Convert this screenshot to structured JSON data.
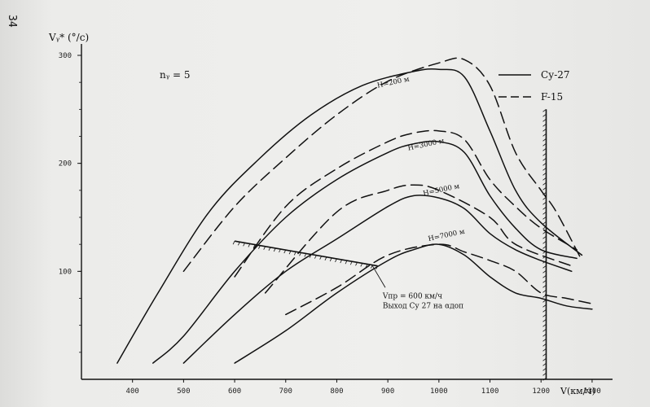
{
  "page_number": "34",
  "chart_data": {
    "type": "line",
    "ylabel": "Vᵧ* (°/c)",
    "xlabel": "V(км/ч)",
    "annotation_ny": "nᵧ = 5",
    "xlim": [
      300,
      1340
    ],
    "ylim": [
      0,
      300
    ],
    "x_ticks": [
      400,
      500,
      600,
      700,
      800,
      900,
      1000,
      1100,
      1200,
      1300
    ],
    "x_tick_labels": [
      "400",
      "500",
      "600",
      "700",
      "800",
      "900",
      "1000",
      "1100",
      "1200",
      "1300"
    ],
    "y_ticks": [
      100,
      200,
      300
    ],
    "y_tick_labels": [
      "100",
      "200",
      "300"
    ],
    "legend": [
      {
        "name": "Су-27",
        "style": "solid"
      },
      {
        "name": "F-15",
        "style": "dashed"
      }
    ],
    "legend_position": "top-right",
    "series": [
      {
        "name": "Су-27",
        "altitude": "H=200 м",
        "style": "solid",
        "points": [
          [
            370,
            15
          ],
          [
            450,
            80
          ],
          [
            550,
            155
          ],
          [
            650,
            205
          ],
          [
            750,
            245
          ],
          [
            850,
            272
          ],
          [
            950,
            285
          ],
          [
            1000,
            287
          ],
          [
            1050,
            280
          ],
          [
            1100,
            230
          ],
          [
            1150,
            175
          ],
          [
            1200,
            145
          ],
          [
            1280,
            115
          ]
        ]
      },
      {
        "name": "F-15",
        "altitude": "H=200 м",
        "style": "dashed",
        "points": [
          [
            500,
            100
          ],
          [
            600,
            160
          ],
          [
            700,
            205
          ],
          [
            800,
            245
          ],
          [
            900,
            276
          ],
          [
            1000,
            293
          ],
          [
            1050,
            296
          ],
          [
            1100,
            272
          ],
          [
            1150,
            210
          ],
          [
            1200,
            175
          ],
          [
            1230,
            155
          ],
          [
            1280,
            110
          ]
        ]
      },
      {
        "name": "Су-27",
        "altitude": "H=3000 м",
        "style": "solid",
        "points": [
          [
            440,
            15
          ],
          [
            500,
            40
          ],
          [
            600,
            100
          ],
          [
            700,
            150
          ],
          [
            800,
            185
          ],
          [
            900,
            210
          ],
          [
            950,
            218
          ],
          [
            1000,
            220
          ],
          [
            1050,
            210
          ],
          [
            1100,
            170
          ],
          [
            1150,
            140
          ],
          [
            1200,
            120
          ],
          [
            1270,
            112
          ]
        ]
      },
      {
        "name": "F-15",
        "altitude": "H=3000 м",
        "style": "dashed",
        "points": [
          [
            600,
            95
          ],
          [
            700,
            160
          ],
          [
            800,
            195
          ],
          [
            900,
            220
          ],
          [
            950,
            228
          ],
          [
            1000,
            230
          ],
          [
            1050,
            222
          ],
          [
            1100,
            185
          ],
          [
            1150,
            160
          ],
          [
            1200,
            140
          ],
          [
            1270,
            120
          ]
        ]
      },
      {
        "name": "Су-27",
        "altitude": "H=5000 м",
        "style": "solid",
        "points": [
          [
            500,
            15
          ],
          [
            600,
            60
          ],
          [
            700,
            100
          ],
          [
            800,
            130
          ],
          [
            900,
            160
          ],
          [
            950,
            170
          ],
          [
            1000,
            168
          ],
          [
            1050,
            158
          ],
          [
            1100,
            135
          ],
          [
            1150,
            120
          ],
          [
            1200,
            110
          ],
          [
            1260,
            100
          ]
        ]
      },
      {
        "name": "F-15",
        "altitude": "H=5000 м",
        "style": "dashed",
        "points": [
          [
            660,
            80
          ],
          [
            800,
            155
          ],
          [
            900,
            175
          ],
          [
            950,
            180
          ],
          [
            1000,
            175
          ],
          [
            1100,
            150
          ],
          [
            1150,
            125
          ],
          [
            1260,
            105
          ]
        ]
      },
      {
        "name": "Су-27",
        "altitude": "H=7000 м",
        "style": "solid",
        "points": [
          [
            600,
            15
          ],
          [
            700,
            45
          ],
          [
            800,
            80
          ],
          [
            900,
            110
          ],
          [
            950,
            120
          ],
          [
            1000,
            125
          ],
          [
            1050,
            115
          ],
          [
            1100,
            95
          ],
          [
            1150,
            80
          ],
          [
            1200,
            75
          ],
          [
            1250,
            68
          ],
          [
            1300,
            65
          ]
        ]
      },
      {
        "name": "F-15",
        "altitude": "H=7000 м",
        "style": "dashed",
        "points": [
          [
            700,
            60
          ],
          [
            800,
            85
          ],
          [
            900,
            115
          ],
          [
            1000,
            125
          ],
          [
            1050,
            118
          ],
          [
            1100,
            110
          ],
          [
            1150,
            100
          ],
          [
            1200,
            80
          ],
          [
            1250,
            75
          ],
          [
            1300,
            70
          ]
        ]
      }
    ],
    "curve_labels": [
      {
        "text": "H=200 м",
        "x": 880,
        "y": 270
      },
      {
        "text": "H=3000 м",
        "x": 940,
        "y": 212
      },
      {
        "text": "H=5000 м",
        "x": 970,
        "y": 170
      },
      {
        "text": "H=7000 м",
        "x": 980,
        "y": 128
      }
    ],
    "boundary_line": {
      "points": [
        [
          600,
          128
        ],
        [
          880,
          105
        ]
      ]
    },
    "vertical_limit": {
      "x": 1210
    },
    "annotation_text": [
      "Vпр = 600 км/ч",
      "Выход Су 27 на αдоп"
    ]
  }
}
